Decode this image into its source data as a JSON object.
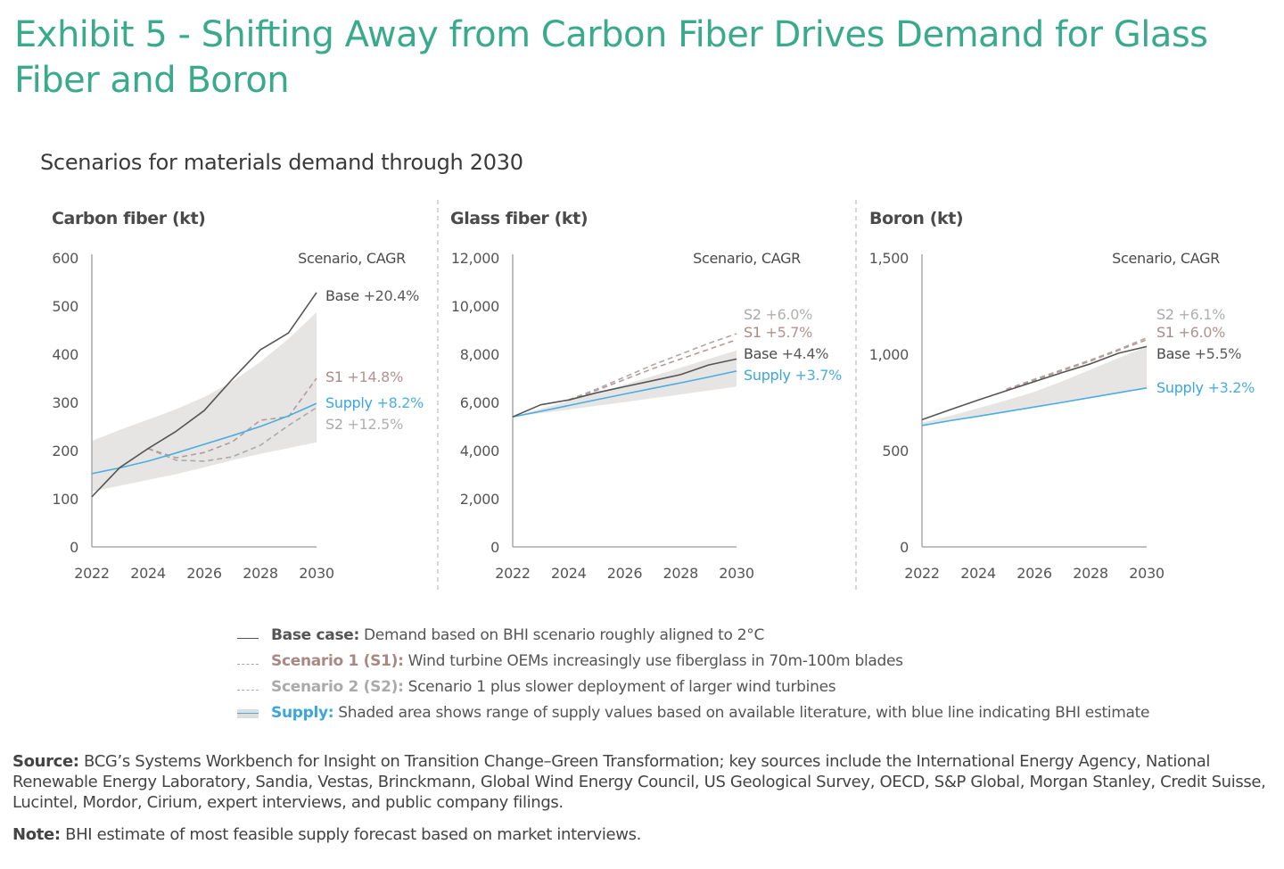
{
  "title": "Exhibit 5 - Shifting Away from Carbon Fiber Drives Demand for Glass Fiber and Boron",
  "subtitle": "Scenarios for materials demand through 2030",
  "colors": {
    "title": "#3aaa8c",
    "base": "#555555",
    "s1": "#b59a98",
    "s2": "#aaaaaa",
    "supply": "#4aaee0",
    "supply_band": "#e6e5e3"
  },
  "chart_data": [
    {
      "type": "line",
      "title": "Carbon fiber (kt)",
      "xlabel": "",
      "ylabel": "kt",
      "x": [
        2022,
        2023,
        2024,
        2025,
        2026,
        2027,
        2028,
        2029,
        2030
      ],
      "xticks": [
        2022,
        2024,
        2026,
        2028,
        2030
      ],
      "yticks": [
        0,
        100,
        200,
        300,
        400,
        500,
        600
      ],
      "ytick_labels": [
        "0",
        "100",
        "200",
        "300",
        "400",
        "500",
        "600"
      ],
      "ylim": [
        0,
        600
      ],
      "grid": false,
      "legend_header": "Scenario, CAGR",
      "series": [
        {
          "name": "Base",
          "key": "base",
          "cagr": "+20.4%",
          "values": [
            104,
            165,
            204,
            240,
            283,
            348,
            409,
            444,
            528
          ]
        },
        {
          "name": "S1",
          "key": "s1",
          "cagr": "+14.8%",
          "values": [
            null,
            null,
            204,
            185,
            196,
            218,
            263,
            270,
            350
          ]
        },
        {
          "name": "Supply",
          "key": "supply",
          "cagr": "+8.2%",
          "values": [
            152,
            164,
            178,
            195,
            213,
            231,
            250,
            272,
            298
          ]
        },
        {
          "name": "S2",
          "key": "s2",
          "cagr": "+12.5%",
          "values": [
            null,
            null,
            204,
            180,
            178,
            187,
            211,
            252,
            289
          ]
        }
      ],
      "band": {
        "name": "Supply range",
        "lower": [
          115,
          127,
          139,
          151,
          165,
          180,
          193,
          205,
          217
        ],
        "upper": [
          220,
          243,
          264,
          286,
          311,
          343,
          384,
          432,
          487
        ]
      },
      "label_order": [
        "base",
        "s1",
        "supply",
        "s2"
      ]
    },
    {
      "type": "line",
      "title": "Glass fiber (kt)",
      "xlabel": "",
      "ylabel": "kt",
      "x": [
        2022,
        2023,
        2024,
        2025,
        2026,
        2027,
        2028,
        2029,
        2030
      ],
      "xticks": [
        2022,
        2024,
        2026,
        2028,
        2030
      ],
      "yticks": [
        0,
        2000,
        4000,
        6000,
        8000,
        10000,
        12000
      ],
      "ytick_labels": [
        "0",
        "2,000",
        "4,000",
        "6,000",
        "8,000",
        "10,000",
        "12,000"
      ],
      "ylim": [
        0,
        12000
      ],
      "grid": false,
      "legend_header": "Scenario, CAGR",
      "series": [
        {
          "name": "S2",
          "key": "s2",
          "cagr": "+6.0%",
          "values": [
            null,
            null,
            6100,
            6550,
            7050,
            7550,
            8000,
            8450,
            8850
          ]
        },
        {
          "name": "S1",
          "key": "s1",
          "cagr": "+5.7%",
          "values": [
            null,
            null,
            6100,
            6500,
            6950,
            7400,
            7800,
            8200,
            8600
          ]
        },
        {
          "name": "Base",
          "key": "base",
          "cagr": "+4.4%",
          "values": [
            5400,
            5900,
            6100,
            6400,
            6650,
            6900,
            7150,
            7550,
            7800
          ]
        },
        {
          "name": "Supply",
          "key": "supply",
          "cagr": "+3.7%",
          "values": [
            5400,
            5630,
            5870,
            6110,
            6350,
            6580,
            6810,
            7050,
            7300
          ]
        }
      ],
      "band": {
        "name": "Supply range",
        "lower": [
          5400,
          5550,
          5700,
          5860,
          6010,
          6170,
          6330,
          6490,
          6650
        ],
        "upper": [
          5400,
          5730,
          6060,
          6400,
          6740,
          7090,
          7440,
          7800,
          8150
        ]
      },
      "label_order": [
        "s2",
        "s1",
        "base",
        "supply"
      ]
    },
    {
      "type": "line",
      "title": "Boron (kt)",
      "xlabel": "",
      "ylabel": "kt",
      "x": [
        2022,
        2023,
        2024,
        2025,
        2026,
        2027,
        2028,
        2029,
        2030
      ],
      "xticks": [
        2022,
        2024,
        2026,
        2028,
        2030
      ],
      "yticks": [
        0,
        500,
        1000,
        1500
      ],
      "ytick_labels": [
        "0",
        "500",
        "1,000",
        "1,500"
      ],
      "ylim": [
        0,
        1500
      ],
      "grid": false,
      "legend_header": "Scenario, CAGR",
      "series": [
        {
          "name": "S2",
          "key": "s2",
          "cagr": "+6.1%",
          "values": [
            null,
            null,
            null,
            818,
            870,
            920,
            970,
            1025,
            1085
          ]
        },
        {
          "name": "S1",
          "key": "s1",
          "cagr": "+6.0%",
          "values": [
            null,
            null,
            null,
            815,
            865,
            915,
            965,
            1020,
            1075
          ]
        },
        {
          "name": "Base",
          "key": "base",
          "cagr": "+5.5%",
          "values": [
            660,
            712,
            762,
            810,
            858,
            905,
            950,
            1005,
            1040
          ]
        },
        {
          "name": "Supply",
          "key": "supply",
          "cagr": "+3.2%",
          "values": [
            630,
            655,
            678,
            702,
            726,
            750,
            775,
            800,
            825
          ]
        }
      ],
      "band": {
        "name": "Supply range",
        "lower": [
          630,
          655,
          678,
          702,
          726,
          750,
          775,
          800,
          825
        ],
        "upper": [
          645,
          680,
          720,
          760,
          805,
          860,
          920,
          980,
          1040
        ]
      },
      "label_order": [
        "s2",
        "s1",
        "base",
        "supply"
      ]
    }
  ],
  "legend": [
    {
      "key": "base",
      "label": "Base case:",
      "text": "Demand based on BHI scenario roughly aligned to 2°C"
    },
    {
      "key": "s1",
      "label": "Scenario 1 (S1):",
      "text": "Wind turbine OEMs increasingly use fiberglass in 70m-100m blades"
    },
    {
      "key": "s2",
      "label": "Scenario 2 (S2):",
      "text": "Scenario 1 plus slower deployment of larger wind turbines"
    },
    {
      "key": "supply",
      "label": "Supply:",
      "text": "Shaded area shows range of supply values based on available literature, with blue line indicating BHI estimate"
    }
  ],
  "source": {
    "label": "Source:",
    "text": "BCG’s Systems Workbench for Insight on Transition Change–Green Transformation; key sources include the International Energy Agency, National Renewable Energy Laboratory, Sandia, Vestas, Brinckmann, Global Wind Energy Council, US Geological Survey, OECD, S&P Global, Morgan Stanley, Credit Suisse, Lucintel, Mordor, Cirium, expert interviews, and public company filings."
  },
  "note": {
    "label": "Note:",
    "text": "BHI estimate of most feasible supply forecast based on market interviews."
  }
}
